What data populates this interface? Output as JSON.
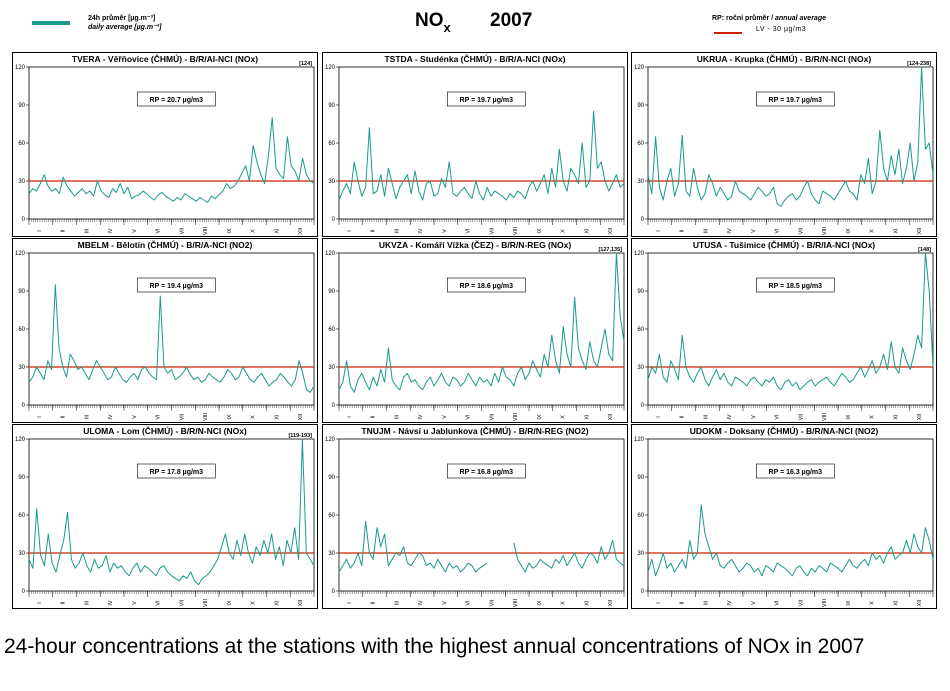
{
  "header": {
    "legend_label_cz": "24h průměr [µg.m⁻³]",
    "legend_label_en": "daily average [µg.m⁻³]",
    "title": "NO",
    "title_sub": "x",
    "year": "2007",
    "rp_label_cz": "RP: roční průměr / ",
    "rp_label_en": "annual average",
    "lv_label": "LV  - 30 µg/m3"
  },
  "colors": {
    "series": "#1a9a8e",
    "limit": "#cc2200",
    "frame": "#000000"
  },
  "caption": "24-hour concentrations at the stations with the highest annual concentrations of NOx in 2007",
  "chart_data": [
    {
      "type": "line",
      "title": "TVERA -  Věřňovice (ČHMÚ) - B/R/AI-NCI (NOx)",
      "annotation": "RP = 20.7 µg/m3",
      "peak_label": "[124]",
      "ylim": [
        0,
        120
      ],
      "yticks": [
        0,
        30,
        60,
        90,
        120
      ],
      "limit": 30,
      "months": [
        "I",
        "II",
        "III",
        "IV",
        "V",
        "VI",
        "VII",
        "VIII",
        "IX",
        "X",
        "XI",
        "XII"
      ],
      "series": [
        {
          "values": [
            20,
            24,
            22,
            28,
            35,
            26,
            22,
            24,
            20,
            33,
            26,
            22,
            18,
            21,
            24,
            20,
            22,
            18,
            30,
            22,
            19,
            17,
            24,
            21,
            28,
            20,
            25,
            16,
            18,
            19,
            22,
            20,
            17,
            15,
            19,
            21,
            18,
            16,
            14,
            17,
            15,
            20,
            18,
            16,
            14,
            17,
            15,
            13,
            18,
            16,
            19,
            22,
            28,
            24,
            26,
            30,
            36,
            42,
            30,
            58,
            45,
            35,
            28,
            50,
            80,
            40,
            35,
            32,
            65,
            42,
            38,
            30,
            48,
            35,
            30,
            28
          ]
        }
      ]
    },
    {
      "type": "line",
      "title": "TSTDA - Studénka (ČHMÚ) - B/R/A-NCI (NOx)",
      "annotation": "RP = 19.7 µg/m3",
      "ylim": [
        0,
        120
      ],
      "yticks": [
        0,
        30,
        60,
        90,
        120
      ],
      "limit": 30,
      "months": [
        "I",
        "II",
        "III",
        "IV",
        "V",
        "VI",
        "VII",
        "VIII",
        "IX",
        "X",
        "XI",
        "XII"
      ],
      "series": [
        {
          "values": [
            15,
            22,
            28,
            20,
            45,
            30,
            18,
            25,
            72,
            20,
            22,
            35,
            18,
            40,
            28,
            16,
            25,
            30,
            35,
            20,
            38,
            22,
            15,
            28,
            30,
            18,
            20,
            32,
            25,
            45,
            20,
            18,
            22,
            25,
            20,
            16,
            30,
            20,
            15,
            25,
            18,
            22,
            20,
            18,
            15,
            20,
            17,
            22,
            20,
            16,
            25,
            30,
            22,
            28,
            35,
            20,
            40,
            25,
            55,
            30,
            22,
            40,
            35,
            28,
            60,
            25,
            30,
            85,
            40,
            45,
            30,
            22,
            28,
            35,
            25,
            28
          ]
        }
      ]
    },
    {
      "type": "line",
      "title": "UKRUA - Krupka (ČHMÚ) - B/R/N-NCI (NOx)",
      "annotation": "RP = 19.7 µg/m3",
      "peak_label": "[124-238]",
      "ylim": [
        0,
        120
      ],
      "yticks": [
        0,
        30,
        60,
        90,
        120
      ],
      "limit": 30,
      "months": [
        "I",
        "II",
        "III",
        "IV",
        "V",
        "VI",
        "VII",
        "VIII",
        "IX",
        "X",
        "XI",
        "XII"
      ],
      "series": [
        {
          "values": [
            35,
            20,
            65,
            25,
            15,
            30,
            40,
            18,
            28,
            66,
            22,
            18,
            40,
            25,
            15,
            20,
            35,
            28,
            18,
            25,
            20,
            15,
            18,
            30,
            22,
            20,
            18,
            15,
            20,
            25,
            22,
            18,
            20,
            25,
            12,
            10,
            15,
            18,
            20,
            15,
            18,
            25,
            30,
            20,
            15,
            12,
            22,
            20,
            18,
            15,
            20,
            25,
            30,
            22,
            20,
            15,
            35,
            28,
            48,
            20,
            30,
            70,
            40,
            30,
            50,
            35,
            55,
            28,
            40,
            60,
            30,
            45,
            120,
            55,
            60,
            35
          ]
        }
      ]
    },
    {
      "type": "line",
      "title": "MBELM - Bělotín (ČHMÚ) - B/R/A-NCI (NO2)",
      "annotation": "RP = 19.4 µg/m3",
      "ylim": [
        0,
        120
      ],
      "yticks": [
        0,
        30,
        60,
        90,
        120
      ],
      "limit": 30,
      "months": [
        "I",
        "II",
        "III",
        "IV",
        "V",
        "VI",
        "VII",
        "VIII",
        "IX",
        "X",
        "XI",
        "XII"
      ],
      "series": [
        {
          "values": [
            18,
            22,
            30,
            25,
            20,
            35,
            28,
            95,
            45,
            30,
            22,
            40,
            35,
            28,
            30,
            25,
            20,
            28,
            35,
            30,
            25,
            20,
            22,
            30,
            25,
            20,
            18,
            22,
            25,
            20,
            28,
            30,
            25,
            22,
            20,
            86,
            30,
            25,
            28,
            20,
            22,
            25,
            30,
            24,
            20,
            22,
            18,
            20,
            25,
            22,
            20,
            18,
            22,
            28,
            25,
            20,
            22,
            30,
            25,
            20,
            18,
            22,
            25,
            20,
            15,
            18,
            20,
            25,
            22,
            18,
            15,
            20,
            35,
            25,
            12,
            10,
            15
          ]
        }
      ]
    },
    {
      "type": "line",
      "title": "UKVZA - Komáří Vížka (ČEZ) - B/R/N-REG (NOx)",
      "annotation": "RP = 18.6 µg/m3",
      "peak_label": "[127,135]",
      "ylim": [
        0,
        120
      ],
      "yticks": [
        0,
        30,
        60,
        90,
        120
      ],
      "limit": 30,
      "months": [
        "I",
        "II",
        "III",
        "IV",
        "V",
        "VI",
        "VII",
        "VIII",
        "IX",
        "X",
        "XI",
        "XII"
      ],
      "series": [
        {
          "values": [
            12,
            18,
            35,
            15,
            10,
            20,
            25,
            18,
            12,
            22,
            15,
            28,
            18,
            45,
            20,
            15,
            12,
            22,
            25,
            18,
            20,
            15,
            12,
            18,
            22,
            15,
            20,
            25,
            18,
            15,
            22,
            20,
            15,
            18,
            25,
            20,
            15,
            22,
            18,
            20,
            15,
            25,
            18,
            30,
            22,
            20,
            15,
            25,
            30,
            20,
            25,
            35,
            28,
            22,
            40,
            30,
            55,
            35,
            25,
            62,
            40,
            30,
            85,
            45,
            35,
            28,
            50,
            35,
            30,
            45,
            60,
            40,
            35,
            120,
            70,
            50
          ]
        }
      ]
    },
    {
      "type": "line",
      "title": "UTUSA - Tušimice (ČHMÚ) - B/R/IA-NCI (NOx)",
      "annotation": "RP = 18.5 µg/m3",
      "peak_label": "[148]",
      "ylim": [
        0,
        120
      ],
      "yticks": [
        0,
        30,
        60,
        90,
        120
      ],
      "limit": 30,
      "months": [
        "I",
        "II",
        "III",
        "IV",
        "V",
        "VI",
        "VII",
        "VIII",
        "IX",
        "X",
        "XI",
        "XII"
      ],
      "series": [
        {
          "values": [
            20,
            30,
            25,
            40,
            22,
            18,
            35,
            28,
            20,
            55,
            30,
            22,
            18,
            25,
            30,
            20,
            15,
            22,
            28,
            20,
            25,
            18,
            15,
            22,
            20,
            18,
            15,
            20,
            22,
            18,
            15,
            20,
            18,
            22,
            15,
            12,
            18,
            20,
            15,
            18,
            12,
            15,
            18,
            20,
            15,
            18,
            20,
            22,
            18,
            15,
            20,
            25,
            22,
            18,
            20,
            25,
            30,
            22,
            28,
            35,
            25,
            30,
            40,
            28,
            50,
            30,
            25,
            45,
            35,
            28,
            40,
            55,
            45,
            120,
            90,
            30
          ]
        }
      ]
    },
    {
      "type": "line",
      "title": "ULOMA - Lom (ČHMÚ) - B/R/N-NCI (NOx)",
      "annotation": "RP = 17.8 µg/m3",
      "peak_label": "[119-193]",
      "ylim": [
        0,
        120
      ],
      "yticks": [
        0,
        30,
        60,
        90,
        120
      ],
      "limit": 30,
      "months": [
        "I",
        "II",
        "III",
        "IV",
        "V",
        "VI",
        "VII",
        "VIII",
        "IX",
        "X",
        "XI",
        "XII"
      ],
      "series": [
        {
          "values": [
            25,
            18,
            65,
            28,
            20,
            45,
            22,
            15,
            28,
            40,
            62,
            25,
            18,
            22,
            30,
            20,
            15,
            25,
            18,
            20,
            28,
            15,
            22,
            18,
            20,
            15,
            12,
            18,
            22,
            15,
            20,
            18,
            15,
            12,
            18,
            20,
            15,
            12,
            10,
            8,
            12,
            10,
            15,
            8,
            5,
            10,
            12,
            15,
            20,
            25,
            35,
            45,
            30,
            25,
            40,
            28,
            45,
            30,
            22,
            35,
            28,
            40,
            30,
            45,
            25,
            35,
            20,
            40,
            30,
            50,
            25,
            120,
            30,
            25,
            20
          ]
        }
      ]
    },
    {
      "type": "line",
      "title": "TNUJM - Návsí u Jablunkova (ČHMÚ) - B/R/N-REG (NO2)",
      "annotation": "RP = 16.8 µg/m3",
      "ylim": [
        0,
        120
      ],
      "yticks": [
        0,
        30,
        60,
        90,
        120
      ],
      "limit": 30,
      "months": [
        "I",
        "II",
        "III",
        "IV",
        "V",
        "VI",
        "VII",
        "VIII",
        "IX",
        "X",
        "XI",
        "XII"
      ],
      "series": [
        {
          "values": [
            15,
            20,
            25,
            18,
            22,
            30,
            20,
            55,
            30,
            25,
            50,
            35,
            45,
            20,
            25,
            30,
            28,
            35,
            22,
            20,
            25,
            30,
            28,
            20,
            22,
            18,
            25,
            20,
            15,
            22,
            18,
            20,
            15,
            18,
            22,
            20,
            15,
            18,
            20,
            22,
            null,
            null,
            null,
            null,
            null,
            null,
            38,
            25,
            20,
            15,
            22,
            18,
            20,
            25,
            22,
            20,
            18,
            25,
            22,
            28,
            20,
            25,
            30,
            22,
            18,
            25,
            30,
            28,
            22,
            35,
            25,
            30,
            40,
            25,
            22,
            20
          ]
        }
      ]
    },
    {
      "type": "line",
      "title": "UDOKM - Doksany (ČHMÚ) - B/R/NA-NCI (NO2)",
      "annotation": "RP = 16.3 µg/m3",
      "ylim": [
        0,
        120
      ],
      "yticks": [
        0,
        30,
        60,
        90,
        120
      ],
      "limit": 30,
      "months": [
        "I",
        "II",
        "III",
        "IV",
        "V",
        "VI",
        "VII",
        "VIII",
        "IX",
        "X",
        "XI",
        "XII"
      ],
      "series": [
        {
          "values": [
            15,
            25,
            12,
            20,
            30,
            18,
            22,
            15,
            20,
            25,
            18,
            40,
            25,
            30,
            68,
            45,
            35,
            25,
            30,
            20,
            18,
            22,
            25,
            20,
            15,
            18,
            22,
            20,
            15,
            18,
            12,
            20,
            18,
            15,
            22,
            20,
            18,
            15,
            12,
            18,
            20,
            15,
            12,
            18,
            15,
            20,
            18,
            15,
            22,
            20,
            18,
            15,
            20,
            25,
            20,
            18,
            22,
            25,
            20,
            30,
            25,
            28,
            22,
            30,
            35,
            25,
            28,
            30,
            40,
            30,
            45,
            35,
            30,
            50,
            40,
            25
          ]
        }
      ]
    }
  ]
}
